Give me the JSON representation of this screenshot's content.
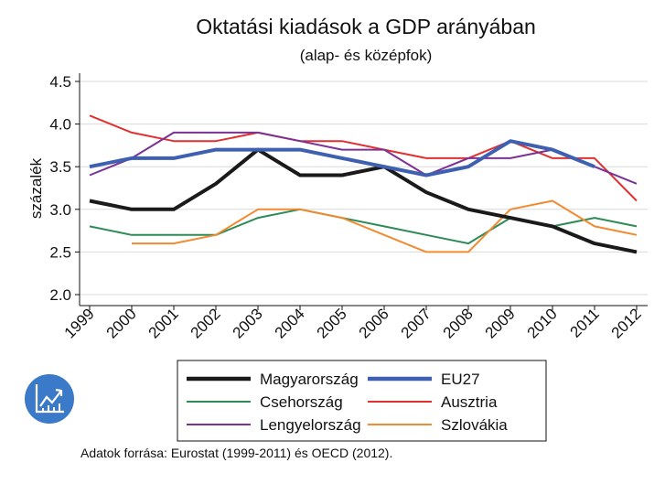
{
  "chart_data": {
    "type": "line",
    "title": "Oktatási kiadások a GDP arányában",
    "subtitle": "(alap- és középfok)",
    "xlabel": "",
    "ylabel": "százalék",
    "x": [
      "1999",
      "2000",
      "2001",
      "2002",
      "2003",
      "2004",
      "2005",
      "2006",
      "2007",
      "2008",
      "2009",
      "2010",
      "2011",
      "2012"
    ],
    "y_ticks": [
      "2.0",
      "2.5",
      "3.0",
      "3.5",
      "4.0",
      "4.5"
    ],
    "ylim": [
      2.0,
      4.5
    ],
    "grid": true,
    "legend_position": "bottom",
    "series": [
      {
        "name": "Magyarország",
        "color": "#1a1a1a",
        "width": "thick",
        "values": [
          3.1,
          3.0,
          3.0,
          3.3,
          3.7,
          3.4,
          3.4,
          3.5,
          3.2,
          3.0,
          2.9,
          2.8,
          2.6,
          2.5
        ]
      },
      {
        "name": "EU27",
        "color": "#3f5fb0",
        "width": "thick",
        "values": [
          3.5,
          3.6,
          3.6,
          3.7,
          3.7,
          3.7,
          3.6,
          3.5,
          3.4,
          3.5,
          3.8,
          3.7,
          3.5,
          null
        ]
      },
      {
        "name": "Csehország",
        "color": "#2e8b57",
        "width": "normal",
        "values": [
          2.8,
          2.7,
          2.7,
          2.7,
          2.9,
          3.0,
          2.9,
          2.8,
          2.7,
          2.6,
          2.9,
          2.8,
          2.9,
          2.8
        ]
      },
      {
        "name": "Ausztria",
        "color": "#e03030",
        "width": "normal",
        "values": [
          4.1,
          3.9,
          3.8,
          3.8,
          3.9,
          3.8,
          3.8,
          3.7,
          3.6,
          3.6,
          3.8,
          3.6,
          3.6,
          3.1
        ]
      },
      {
        "name": "Lengyelország",
        "color": "#7b3294",
        "width": "normal",
        "values": [
          3.4,
          3.6,
          3.9,
          3.9,
          3.9,
          3.8,
          3.7,
          3.7,
          3.4,
          3.6,
          3.6,
          3.7,
          3.5,
          3.3
        ]
      },
      {
        "name": "Szlovákia",
        "color": "#f28a30",
        "width": "normal",
        "values": [
          null,
          2.6,
          2.6,
          2.7,
          3.0,
          3.0,
          2.9,
          2.7,
          2.5,
          2.5,
          3.0,
          3.1,
          2.8,
          2.7
        ]
      }
    ],
    "source_note": "Adatok forrása: Eurostat (1999-2011) és OECD (2012).",
    "icon": "chart-growth-icon",
    "icon_color": "#3b7ac9"
  }
}
